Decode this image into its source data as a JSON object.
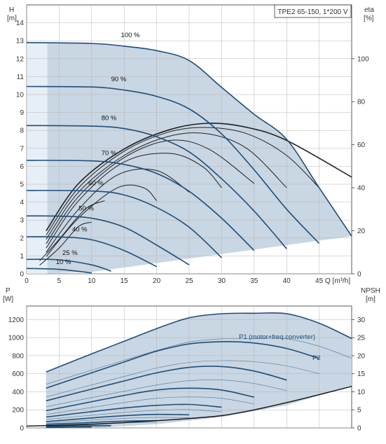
{
  "colors": {
    "area_fill": "#c9d6e3",
    "area_fill_light": "#e6eef6",
    "curve_dark": "#1f4e79",
    "grid": "#b5b5b5",
    "axis": "#333333",
    "text_blue": "#1f4e79",
    "npsh": "#111111",
    "eta_curve": "#000000"
  },
  "chart_data": [
    {
      "type": "line",
      "panel": "head",
      "title": "TPE2 65-150, 1*200 V",
      "ylabel_left": [
        "H",
        "[m]"
      ],
      "ylabel_right": [
        "eta",
        "[%]"
      ],
      "xlabel": "Q [m³/h]",
      "xlim": [
        0,
        50
      ],
      "ylim": [
        0,
        15
      ],
      "ylim_right": [
        0,
        125
      ],
      "x_ticks": [
        "0",
        "5",
        "10",
        "15",
        "20",
        "25",
        "30",
        "35",
        "40",
        "45"
      ],
      "y_ticks": [
        "0",
        "1",
        "2",
        "3",
        "4",
        "5",
        "6",
        "7",
        "8",
        "9",
        "10",
        "11",
        "12",
        "13",
        "14"
      ],
      "y_right_ticks": [
        "0",
        "20",
        "40",
        "60",
        "80",
        "100"
      ],
      "grid": true,
      "series": [
        {
          "label": "100 %",
          "x": [
            0,
            10,
            15,
            20,
            25,
            30,
            35,
            40,
            45,
            50
          ],
          "y": [
            12.9,
            12.85,
            12.7,
            12.45,
            11.9,
            10.4,
            8.9,
            7.5,
            4.8,
            2.1
          ]
        },
        {
          "label": "90 %",
          "x": [
            0,
            10,
            15,
            20,
            25,
            30,
            35,
            40,
            45
          ],
          "y": [
            10.45,
            10.42,
            10.25,
            9.9,
            9.2,
            7.8,
            5.8,
            3.6,
            1.7
          ]
        },
        {
          "label": "80 %",
          "x": [
            0,
            10,
            15,
            20,
            25,
            30,
            35,
            40
          ],
          "y": [
            8.27,
            8.24,
            8.1,
            7.65,
            6.8,
            5.3,
            3.5,
            1.4
          ]
        },
        {
          "label": "70 %",
          "x": [
            0,
            10,
            15,
            20,
            25,
            30,
            35
          ],
          "y": [
            6.33,
            6.3,
            6.1,
            5.6,
            4.6,
            3.1,
            1.3
          ]
        },
        {
          "label": "60 %",
          "x": [
            0,
            10,
            15,
            20,
            25,
            30
          ],
          "y": [
            4.65,
            4.62,
            4.4,
            3.7,
            2.6,
            0.9
          ]
        },
        {
          "label": "50 %",
          "x": [
            0,
            5,
            10,
            15,
            20,
            25
          ],
          "y": [
            3.23,
            3.22,
            3.1,
            2.6,
            1.6,
            0.5
          ]
        },
        {
          "label": "40 %",
          "x": [
            0,
            5,
            10,
            15,
            20
          ],
          "y": [
            2.07,
            2.06,
            1.9,
            1.3,
            0.4
          ]
        },
        {
          "label": "25 %",
          "x": [
            0,
            5,
            10,
            13
          ],
          "y": [
            0.81,
            0.78,
            0.5,
            0.15
          ]
        },
        {
          "label": "10 %",
          "x": [
            0,
            5,
            10
          ],
          "y": [
            0.3,
            0.25,
            0.05
          ]
        }
      ],
      "eta_series": [
        {
          "x": [
            3,
            8,
            15,
            22,
            28,
            34,
            40,
            50
          ],
          "y": [
            20,
            42,
            58,
            67,
            70,
            68,
            62,
            45
          ]
        },
        {
          "x": [
            3,
            8,
            15,
            22,
            28,
            34,
            40,
            45
          ],
          "y": [
            18,
            40,
            57,
            66,
            68,
            65,
            55,
            40
          ]
        },
        {
          "x": [
            3,
            8,
            15,
            22,
            28,
            34,
            40
          ],
          "y": [
            16,
            38,
            55,
            64,
            65,
            58,
            40
          ]
        },
        {
          "x": [
            3,
            8,
            15,
            22,
            28,
            35
          ],
          "y": [
            14,
            36,
            54,
            62,
            58,
            42
          ]
        },
        {
          "x": [
            3,
            8,
            15,
            22,
            27,
            30
          ],
          "y": [
            12,
            34,
            52,
            56,
            50,
            40
          ]
        },
        {
          "x": [
            3,
            8,
            14,
            20,
            25
          ],
          "y": [
            10,
            30,
            46,
            48,
            38
          ]
        },
        {
          "x": [
            3,
            8,
            14,
            18,
            20
          ],
          "y": [
            8,
            26,
            40,
            40,
            34
          ]
        },
        {
          "x": [
            2,
            5,
            9,
            12
          ],
          "y": [
            6,
            16,
            30,
            34
          ]
        },
        {
          "x": [
            2,
            5,
            8,
            10
          ],
          "y": [
            4,
            12,
            22,
            24
          ]
        }
      ]
    },
    {
      "type": "line",
      "panel": "power",
      "ylabel_left": [
        "P",
        "[W]"
      ],
      "ylabel_right": [
        "NPSH",
        "[m]"
      ],
      "xlim": [
        0,
        50
      ],
      "ylim": [
        0,
        1350
      ],
      "ylim_right": [
        0,
        33.75
      ],
      "y_ticks": [
        "0",
        "200",
        "400",
        "600",
        "800",
        "1000",
        "1200"
      ],
      "y_right_ticks": [
        "0",
        "5",
        "10",
        "15",
        "20",
        "25",
        "30"
      ],
      "grid": true,
      "annotations": [
        "P1 (motor+freq.converter)",
        "P2"
      ],
      "p1_series": [
        {
          "label": "100 %",
          "x": [
            3,
            10,
            15,
            20,
            25,
            30,
            35,
            40,
            45,
            50
          ],
          "y": [
            620,
            820,
            960,
            1100,
            1220,
            1265,
            1270,
            1265,
            1160,
            990
          ]
        },
        {
          "label": "90 %",
          "x": [
            3,
            10,
            15,
            20,
            25,
            30,
            35,
            40,
            45
          ],
          "y": [
            440,
            610,
            730,
            850,
            930,
            955,
            940,
            880,
            770
          ]
        },
        {
          "label": "80 %",
          "x": [
            3,
            10,
            15,
            20,
            25,
            30,
            35,
            40
          ],
          "y": [
            300,
            430,
            520,
            610,
            670,
            680,
            630,
            530
          ]
        },
        {
          "label": "70 %",
          "x": [
            3,
            10,
            15,
            20,
            25,
            30,
            35
          ],
          "y": [
            190,
            290,
            360,
            420,
            440,
            420,
            340
          ]
        },
        {
          "label": "60 %",
          "x": [
            3,
            10,
            15,
            20,
            25,
            30
          ],
          "y": [
            120,
            180,
            220,
            250,
            260,
            230
          ]
        },
        {
          "label": "50 %",
          "x": [
            3,
            10,
            15,
            20,
            25
          ],
          "y": [
            70,
            110,
            135,
            150,
            145
          ]
        },
        {
          "label": "40 %",
          "x": [
            3,
            10,
            15,
            20
          ],
          "y": [
            40,
            60,
            75,
            80
          ]
        },
        {
          "label": "25 %",
          "x": [
            3,
            8,
            13
          ],
          "y": [
            15,
            22,
            25
          ]
        },
        {
          "label": "10 %",
          "x": [
            3,
            7,
            10
          ],
          "y": [
            5,
            8,
            9
          ]
        }
      ],
      "npsh_series": {
        "x": [
          0,
          10,
          20,
          25,
          30,
          35,
          40,
          45,
          50
        ],
        "y": [
          0.5,
          1,
          2,
          2.6,
          3.4,
          5,
          7,
          9.2,
          11.5
        ]
      }
    }
  ]
}
